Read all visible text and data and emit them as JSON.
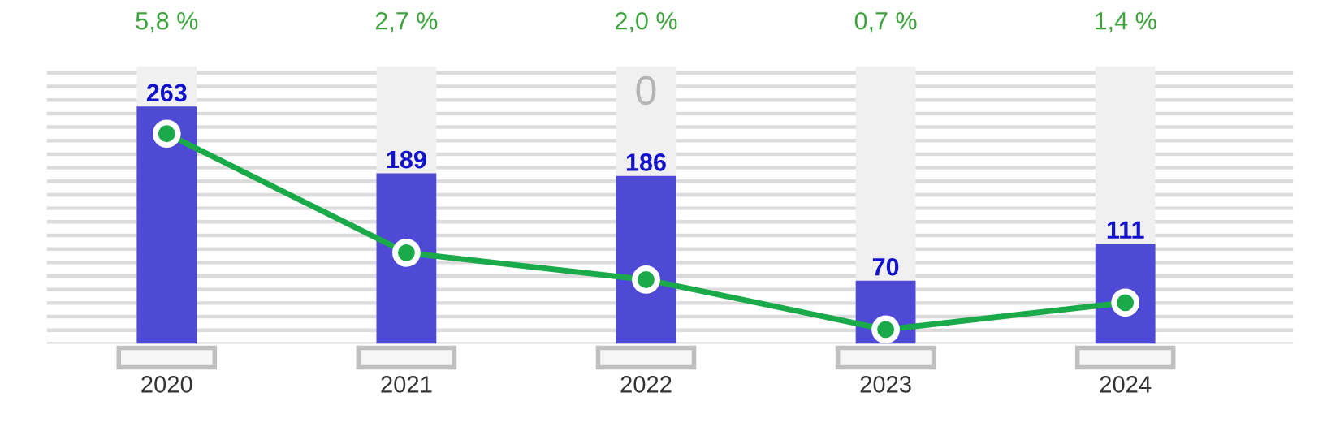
{
  "chart_data": {
    "type": "bar",
    "categories": [
      "2020",
      "2021",
      "2022",
      "2023",
      "2024"
    ],
    "series": [
      {
        "color": "#4f4ad6",
        "values": [
          263,
          189,
          186,
          70,
          111
        ],
        "data_labels": true
      },
      {
        "type": "line",
        "axis": "y2",
        "color": "#1aaa4a",
        "values": [
          5.8,
          2.7,
          2.0,
          0.7,
          1.4
        ],
        "value_labels": [
          "5,8 %",
          "2,7 %",
          "2,0 %",
          "0,7 %",
          "1,4 %"
        ],
        "marker": "circle"
      }
    ],
    "grid": "y",
    "tick_labels": "x",
    "annotations": [
      "0"
    ]
  }
}
